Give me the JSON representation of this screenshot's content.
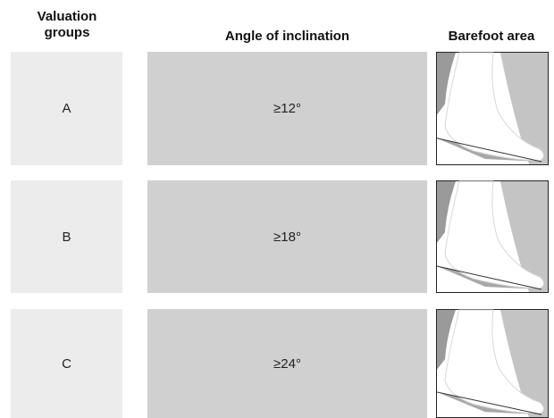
{
  "header": {
    "columns": [
      "Valuation groups",
      "Angle of inclination",
      "Barefoot area"
    ]
  },
  "table": {
    "rows": [
      [
        "A",
        "≥12°"
      ],
      [
        "B",
        "≥18°"
      ],
      [
        "C",
        "≥24°"
      ]
    ]
  }
}
